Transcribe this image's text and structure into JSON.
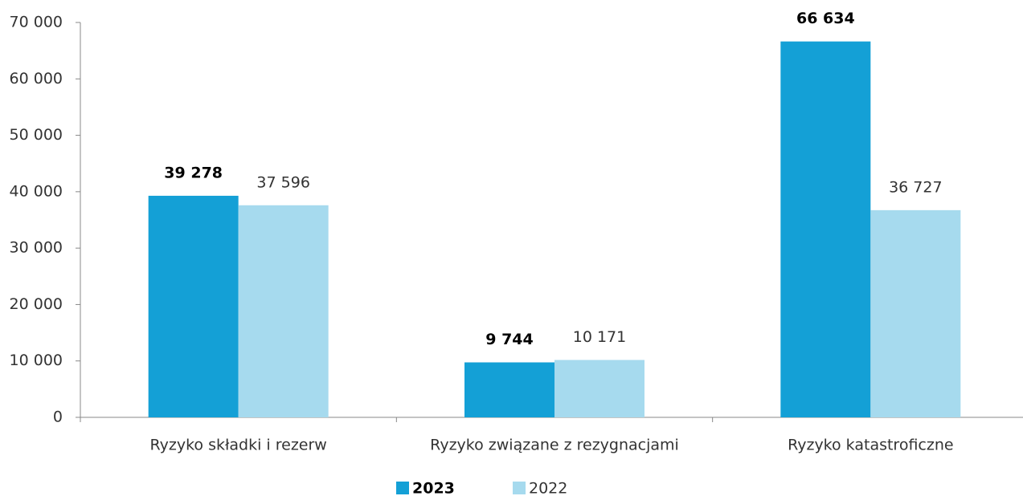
{
  "chart_data": {
    "type": "bar",
    "categories": [
      "Ryzyko składki i rezerw",
      "Ryzyko związane z rezygnacjami",
      "Ryzyko katastroficzne"
    ],
    "series": [
      {
        "name": "2023",
        "color": "#14a0d6",
        "values": [
          39278,
          9744,
          66634
        ],
        "value_labels": [
          "39 278",
          "9 744",
          "66 634"
        ]
      },
      {
        "name": "2022",
        "color": "#a6daee",
        "values": [
          37596,
          10171,
          36727
        ],
        "value_labels": [
          "37 596",
          "10 171",
          "36 727"
        ]
      }
    ],
    "ylim": [
      0,
      70000
    ],
    "yticks": [
      0,
      {
        "value": 10000,
        "label": "10 000"
      },
      {
        "value": 20000,
        "label": "20 000"
      },
      {
        "value": 30000,
        "label": "30 000"
      },
      {
        "value": 40000,
        "label": "40 000"
      },
      {
        "value": 50000,
        "label": "50 000"
      },
      {
        "value": 60000,
        "label": "60 000"
      },
      {
        "value": 70000,
        "label": "70 000"
      }
    ],
    "grid": false,
    "legend": "bottom"
  }
}
